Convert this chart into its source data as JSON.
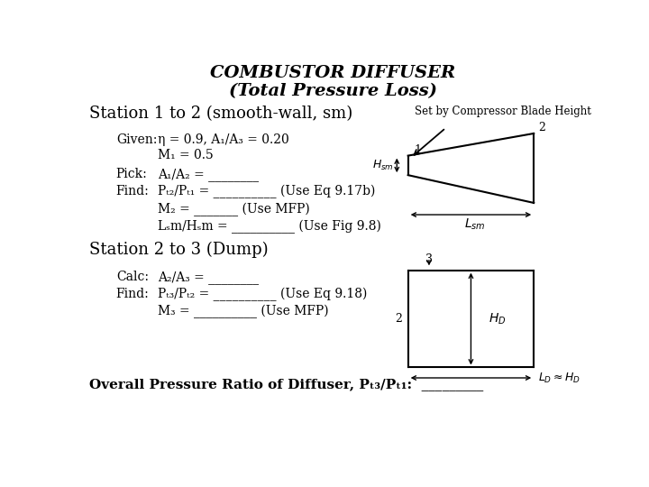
{
  "title_line1": "COMBUSTOR DIFFUSER",
  "title_line2": "(Total Pressure Loss)",
  "station12_label": "Station 1 to 2 (smooth-wall, sm)",
  "set_by_label": "Set by Compressor Blade Height",
  "given_label": "Given:",
  "given_line1": "η = 0.9, A₁/A₃ = 0.20",
  "given_line2": "M₁ = 0.5",
  "pick_label": "Pick:",
  "pick_line1": "A₁/A₂ = ________",
  "find_label": "Find:",
  "find_line1": "Pₜ₂/Pₜ₁ = __________ (Use Eq 9.17b)",
  "find_line2": "M₂ = _______ (Use MFP)",
  "find_line3": "Lₛm/Hₛm = __________ (Use Fig 9.8)",
  "station23_label": "Station 2 to 3 (Dump)",
  "calc_label": "Calc:",
  "calc_line1": "A₂/A₃ = ________",
  "find2_label": "Find:",
  "find2_line1": "Pₜ₃/Pₜ₂ = __________ (Use Eq 9.18)",
  "find2_line2": "M₃ = __________ (Use MFP)",
  "overall_label": "Overall Pressure Ratio of Diffuser, Pₜ₃/Pₜ₁:  _________",
  "bg_color": "#ffffff"
}
